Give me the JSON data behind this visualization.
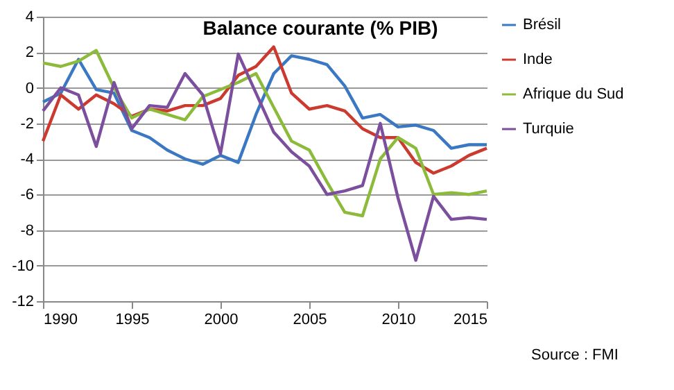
{
  "chart_data": {
    "type": "line",
    "title": "Balance courante (% PIB)",
    "x": [
      1990,
      1991,
      1992,
      1993,
      1994,
      1995,
      1996,
      1997,
      1998,
      1999,
      2000,
      2001,
      2002,
      2003,
      2004,
      2005,
      2006,
      2007,
      2008,
      2009,
      2010,
      2011,
      2012,
      2013,
      2014,
      2015
    ],
    "series": [
      {
        "name": "Brésil",
        "color": "#3a78c3",
        "values": [
          -0.8,
          -0.3,
          1.6,
          -0.1,
          -0.3,
          -2.4,
          -2.8,
          -3.5,
          -4.0,
          -4.3,
          -3.8,
          -4.2,
          -1.5,
          0.8,
          1.8,
          1.6,
          1.3,
          0.1,
          -1.7,
          -1.5,
          -2.2,
          -2.1,
          -2.4,
          -3.4,
          -3.2,
          -3.2
        ]
      },
      {
        "name": "Inde",
        "color": "#cc3a2f",
        "values": [
          -3.0,
          -0.4,
          -1.2,
          -0.4,
          -0.9,
          -1.6,
          -1.2,
          -1.3,
          -1.0,
          -1.0,
          -0.6,
          0.7,
          1.2,
          2.3,
          -0.3,
          -1.2,
          -1.0,
          -1.3,
          -2.3,
          -2.8,
          -2.8,
          -4.2,
          -4.8,
          -4.4,
          -3.8,
          -3.4
        ]
      },
      {
        "name": "Afrique du Sud",
        "color": "#8cbb3c",
        "values": [
          1.4,
          1.2,
          1.5,
          2.1,
          0.0,
          -1.7,
          -1.2,
          -1.5,
          -1.8,
          -0.5,
          -0.1,
          0.3,
          0.8,
          -1.1,
          -3.0,
          -3.5,
          -5.3,
          -7.0,
          -7.2,
          -4.0,
          -2.8,
          -3.4,
          -6.0,
          -5.9,
          -6.0,
          -5.8
        ]
      },
      {
        "name": "Turquie",
        "color": "#7b4f9e",
        "values": [
          -1.3,
          0.0,
          -0.4,
          -3.3,
          0.3,
          -2.3,
          -1.0,
          -1.1,
          0.8,
          -0.4,
          -3.7,
          1.9,
          -0.3,
          -2.5,
          -3.6,
          -4.4,
          -6.0,
          -5.8,
          -5.5,
          -2.0,
          -6.2,
          -9.7,
          -6.1,
          -7.4,
          -7.3,
          -7.4
        ]
      }
    ],
    "xlim": [
      1990,
      2015
    ],
    "xticks": [
      1990,
      1995,
      2000,
      2005,
      2010,
      2015
    ],
    "ylim": [
      -12,
      4
    ],
    "yticks": [
      -12,
      -10,
      -8,
      -6,
      -4,
      -2,
      0,
      2,
      4
    ],
    "grid": "y",
    "legend": "right",
    "line_style": "solid",
    "annotations": [
      "Source : FMI"
    ]
  }
}
